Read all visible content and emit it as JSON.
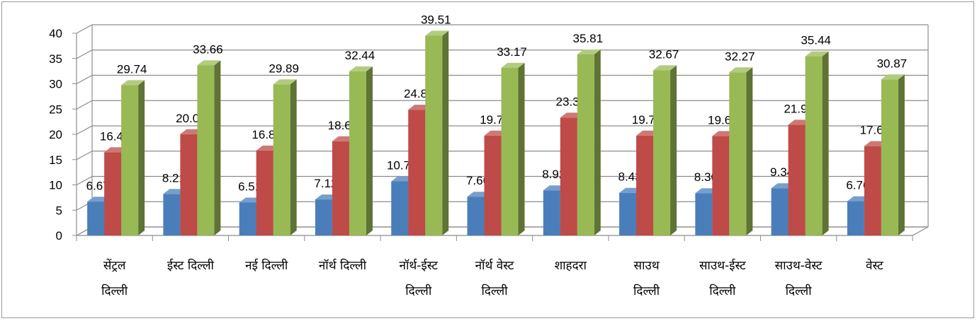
{
  "chart_data": {
    "type": "bar",
    "categories": [
      [
        "सेंट्रल",
        "दिल्ली"
      ],
      [
        "ईस्ट दिल्ली"
      ],
      [
        "नई दिल्ली"
      ],
      [
        "नॉर्थ दिल्ली"
      ],
      [
        "नॉर्थ-ईस्ट",
        "दिल्ली"
      ],
      [
        "नॉर्थ वेस्ट",
        "दिल्ली"
      ],
      [
        "शाहदरा"
      ],
      [
        "साउथ",
        "दिल्ली"
      ],
      [
        "साउथ-ईस्ट",
        "दिल्ली"
      ],
      [
        "साउथ-वेस्ट",
        "दिल्ली"
      ],
      [
        "वेस्ट"
      ]
    ],
    "series": [
      {
        "values": [
          6.67,
          8.21,
          6.51,
          7.12,
          10.7,
          7.66,
          8.92,
          8.43,
          8.36,
          9.34,
          6.76
        ],
        "labels": [
          "6.67",
          "8.21",
          "6.51",
          "7.12",
          "10.70",
          "7.66",
          "8.92",
          "8.43",
          "8.36",
          "9.34",
          "6.76"
        ],
        "color": "#4a7ebb"
      },
      {
        "values": [
          16.46,
          20.03,
          16.8,
          18.63,
          24.87,
          19.75,
          23.3,
          19.75,
          19.66,
          21.9,
          17.67
        ],
        "labels": [
          "16.46",
          "20.03",
          "16.80",
          "18.63",
          "24.87",
          "19.75",
          "23.30",
          "19.75",
          "19.66",
          "21.90",
          "17.67"
        ],
        "color": "#be4b48"
      },
      {
        "values": [
          29.74,
          33.66,
          29.89,
          32.44,
          39.51,
          33.17,
          35.81,
          32.67,
          32.27,
          35.44,
          30.87
        ],
        "labels": [
          "29.74",
          "33.66",
          "29.89",
          "32.44",
          "39.51",
          "33.17",
          "35.81",
          "32.67",
          "32.27",
          "35.44",
          "30.87"
        ],
        "color": "#98b954"
      }
    ],
    "yticks": [
      "0",
      "5",
      "10",
      "15",
      "20",
      "25",
      "30",
      "35",
      "40"
    ],
    "ylim": [
      0,
      40
    ],
    "grid": true,
    "legend": "none",
    "title": "",
    "xlabel": "",
    "ylabel": ""
  }
}
